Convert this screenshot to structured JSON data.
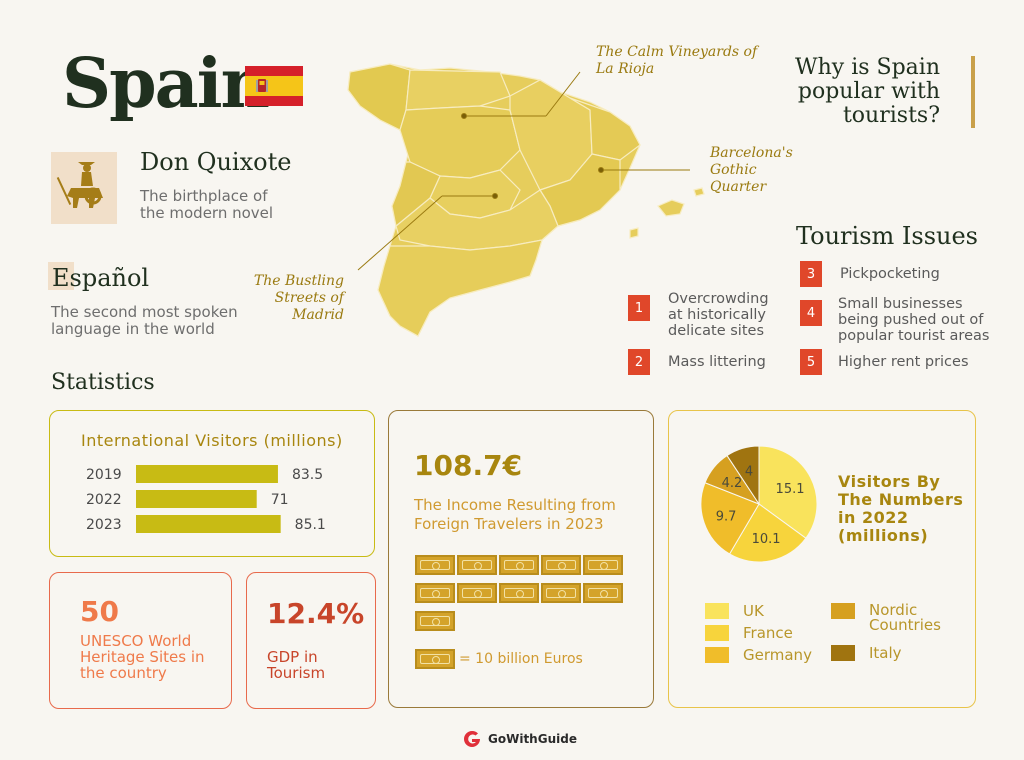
{
  "header": {
    "title": "Spain"
  },
  "facts": {
    "quixote_title": "Don Quixote",
    "quixote_desc_1": "The birthplace of",
    "quixote_desc_2": "the modern novel",
    "espanol_title": "Español",
    "espanol_desc_1": "The second most spoken",
    "espanol_desc_2": "language in the world"
  },
  "map": {
    "callout_rioja_1": "The Calm Vineyards of",
    "callout_rioja_2": "La Rioja",
    "callout_barcelona_1": "Barcelona's",
    "callout_barcelona_2": "Gothic",
    "callout_barcelona_3": "Quarter",
    "callout_madrid_1": "The Bustling",
    "callout_madrid_2": "Streets of",
    "callout_madrid_3": "Madrid"
  },
  "why": {
    "line1": "Why is Spain",
    "line2": "popular with",
    "line3": "tourists?"
  },
  "issues": {
    "title": "Tourism Issues",
    "items": [
      {
        "num": "1",
        "l1": "Overcrowding",
        "l2": "at historically",
        "l3": "delicate sites"
      },
      {
        "num": "2",
        "l1": "Mass littering"
      },
      {
        "num": "3",
        "l1": "Pickpocketing"
      },
      {
        "num": "4",
        "l1": "Small businesses",
        "l2": "being pushed out of",
        "l3": "popular tourist areas"
      },
      {
        "num": "5",
        "l1": "Higher rent prices"
      }
    ]
  },
  "stats": {
    "title": "Statistics",
    "visitors_title": "International Visitors (millions)",
    "unesco_value": "50",
    "unesco_l1": "UNESCO World",
    "unesco_l2": "Heritage Sites in",
    "unesco_l3": "the country",
    "gdp_value": "12.4%",
    "gdp_l1": "GDP in",
    "gdp_l2": "Tourism",
    "income_value": "108.7€",
    "income_l1": "The Income Resulting from",
    "income_l2": "Foreign Travelers in 2023",
    "bill_legend": "= 10 billion Euros",
    "bill_count": 11,
    "pie_title_1": "Visitors By",
    "pie_title_2": "The Numbers",
    "pie_title_3": "in 2022",
    "pie_title_4": "(millions)"
  },
  "chart_data": [
    {
      "type": "bar",
      "title": "International Visitors (millions)",
      "categories": [
        "2019",
        "2022",
        "2023"
      ],
      "values": [
        83.5,
        71,
        85.1
      ],
      "labels": [
        "83.5",
        "71",
        "85.1"
      ],
      "color": "#c8bb14"
    },
    {
      "type": "pie",
      "title": "Visitors By The Numbers in 2022 (millions)",
      "series": [
        {
          "name": "UK",
          "value": 15.1,
          "label": "15.1",
          "color": "#f9e35c"
        },
        {
          "name": "France",
          "value": 10.1,
          "label": "10.1",
          "color": "#f7d43c"
        },
        {
          "name": "Germany",
          "value": 9.7,
          "label": "9.7",
          "color": "#f0bd2a"
        },
        {
          "name": "Nordic Countries",
          "value": 4.2,
          "label": "4.2",
          "color": "#d6a020"
        },
        {
          "name": "Italy",
          "value": 4,
          "label": "4",
          "color": "#a07410"
        }
      ]
    }
  ],
  "footer": {
    "brand": "GoWithGuide"
  }
}
